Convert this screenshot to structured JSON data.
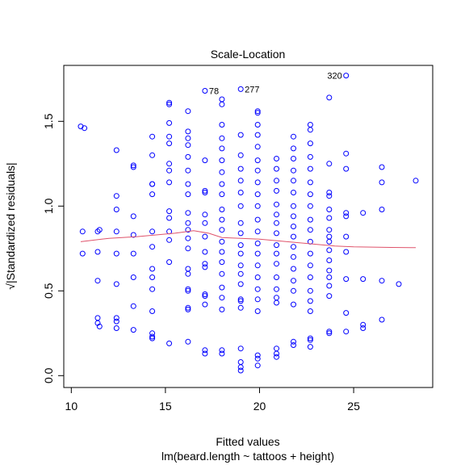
{
  "chart_data": {
    "type": "scatter",
    "title": "Scale-Location",
    "xlabel": "Fitted values",
    "subtitle": "lm(beard.length ~ tattoos + height)",
    "ylabel": "√|Standardized residuals|",
    "xlim": [
      9.6,
      29.2
    ],
    "ylim": [
      -0.07,
      1.83
    ],
    "x_ticks": [
      10,
      15,
      20,
      25
    ],
    "y_ticks": [
      0.0,
      0.5,
      1.0,
      1.5
    ],
    "x_tick_labels": [
      "10",
      "15",
      "20",
      "25"
    ],
    "y_tick_labels": [
      "0.0",
      "0.5",
      "1.0",
      "1.5"
    ],
    "grid": false,
    "point_color": "#0000FF",
    "smooth_color": "#DF536B",
    "points": [
      [
        10.5,
        1.47
      ],
      [
        10.7,
        1.46
      ],
      [
        10.6,
        0.85
      ],
      [
        10.6,
        0.72
      ],
      [
        11.4,
        0.85
      ],
      [
        11.5,
        0.86
      ],
      [
        11.4,
        0.73
      ],
      [
        11.4,
        0.56
      ],
      [
        11.4,
        0.34
      ],
      [
        11.4,
        0.31
      ],
      [
        11.5,
        0.29
      ],
      [
        12.4,
        1.33
      ],
      [
        12.4,
        1.06
      ],
      [
        12.4,
        0.98
      ],
      [
        12.4,
        0.85
      ],
      [
        12.4,
        0.72
      ],
      [
        12.4,
        0.54
      ],
      [
        12.4,
        0.34
      ],
      [
        12.4,
        0.32
      ],
      [
        12.4,
        0.28
      ],
      [
        13.3,
        1.24
      ],
      [
        13.3,
        1.23
      ],
      [
        13.3,
        0.94
      ],
      [
        13.3,
        0.83
      ],
      [
        13.3,
        0.72
      ],
      [
        13.3,
        0.58
      ],
      [
        13.3,
        0.41
      ],
      [
        13.3,
        0.27
      ],
      [
        14.3,
        1.41
      ],
      [
        14.3,
        1.3
      ],
      [
        14.3,
        1.13
      ],
      [
        14.3,
        1.07
      ],
      [
        14.3,
        1.13
      ],
      [
        14.3,
        0.85
      ],
      [
        14.3,
        0.76
      ],
      [
        14.3,
        0.63
      ],
      [
        14.3,
        0.58
      ],
      [
        14.3,
        0.51
      ],
      [
        14.3,
        0.38
      ],
      [
        14.3,
        0.25
      ],
      [
        14.3,
        0.22
      ],
      [
        14.3,
        0.23
      ],
      [
        15.2,
        1.61
      ],
      [
        15.2,
        1.6
      ],
      [
        15.2,
        1.49
      ],
      [
        15.2,
        1.41
      ],
      [
        15.2,
        1.37
      ],
      [
        15.2,
        1.25
      ],
      [
        15.2,
        1.21
      ],
      [
        15.2,
        1.14
      ],
      [
        15.2,
        0.97
      ],
      [
        15.2,
        0.93
      ],
      [
        15.2,
        0.85
      ],
      [
        15.2,
        0.8
      ],
      [
        15.2,
        0.67
      ],
      [
        15.2,
        0.19
      ],
      [
        16.2,
        1.56
      ],
      [
        16.2,
        1.44
      ],
      [
        16.2,
        1.4
      ],
      [
        16.2,
        1.36
      ],
      [
        16.2,
        1.29
      ],
      [
        16.2,
        1.21
      ],
      [
        16.2,
        1.13
      ],
      [
        16.2,
        1.07
      ],
      [
        16.2,
        0.96
      ],
      [
        16.2,
        0.9
      ],
      [
        16.2,
        0.86
      ],
      [
        16.2,
        0.81
      ],
      [
        16.2,
        0.75
      ],
      [
        16.2,
        0.63
      ],
      [
        16.2,
        0.6
      ],
      [
        16.2,
        0.51
      ],
      [
        16.2,
        0.5
      ],
      [
        16.2,
        0.4
      ],
      [
        16.2,
        0.39
      ],
      [
        16.2,
        0.2
      ],
      [
        17.1,
        1.27
      ],
      [
        17.1,
        1.09
      ],
      [
        17.1,
        1.08
      ],
      [
        17.1,
        0.95
      ],
      [
        17.1,
        0.9
      ],
      [
        17.1,
        0.82
      ],
      [
        17.1,
        0.73
      ],
      [
        17.1,
        0.66
      ],
      [
        17.1,
        0.64
      ],
      [
        17.1,
        0.48
      ],
      [
        17.1,
        0.47
      ],
      [
        17.1,
        0.42
      ],
      [
        17.1,
        0.15
      ],
      [
        17.1,
        0.13
      ],
      [
        17.1,
        1.68
      ],
      [
        18.0,
        1.63
      ],
      [
        18.0,
        1.6
      ],
      [
        18.0,
        1.48
      ],
      [
        18.0,
        1.4
      ],
      [
        18.0,
        1.34
      ],
      [
        18.0,
        1.27
      ],
      [
        18.0,
        1.2
      ],
      [
        18.0,
        1.13
      ],
      [
        18.0,
        1.07
      ],
      [
        18.0,
        0.98
      ],
      [
        18.0,
        0.92
      ],
      [
        18.0,
        0.86
      ],
      [
        18.0,
        0.79
      ],
      [
        18.0,
        0.73
      ],
      [
        18.0,
        0.67
      ],
      [
        18.0,
        0.6
      ],
      [
        18.0,
        0.52
      ],
      [
        18.0,
        0.46
      ],
      [
        18.0,
        0.39
      ],
      [
        18.0,
        0.15
      ],
      [
        18.0,
        0.13
      ],
      [
        19.0,
        1.69
      ],
      [
        19.0,
        1.42
      ],
      [
        19.0,
        1.3
      ],
      [
        19.0,
        1.22
      ],
      [
        19.0,
        1.15
      ],
      [
        19.0,
        1.08
      ],
      [
        19.0,
        1.0
      ],
      [
        19.0,
        0.9
      ],
      [
        19.0,
        0.84
      ],
      [
        19.0,
        0.77
      ],
      [
        19.0,
        0.72
      ],
      [
        19.0,
        0.65
      ],
      [
        19.0,
        0.6
      ],
      [
        19.0,
        0.54
      ],
      [
        19.0,
        0.45
      ],
      [
        19.0,
        0.44
      ],
      [
        19.0,
        0.4
      ],
      [
        19.0,
        0.16
      ],
      [
        19.0,
        0.08
      ],
      [
        19.0,
        0.05
      ],
      [
        19.0,
        0.03
      ],
      [
        19.9,
        1.56
      ],
      [
        19.9,
        1.55
      ],
      [
        19.9,
        1.48
      ],
      [
        19.9,
        1.42
      ],
      [
        19.9,
        1.35
      ],
      [
        19.9,
        1.27
      ],
      [
        19.9,
        1.21
      ],
      [
        19.9,
        1.14
      ],
      [
        19.9,
        1.07
      ],
      [
        19.9,
        1.0
      ],
      [
        19.9,
        0.92
      ],
      [
        19.9,
        0.85
      ],
      [
        19.9,
        0.78
      ],
      [
        19.9,
        0.72
      ],
      [
        19.9,
        0.65
      ],
      [
        19.9,
        0.58
      ],
      [
        19.9,
        0.51
      ],
      [
        19.9,
        0.45
      ],
      [
        19.9,
        0.38
      ],
      [
        19.9,
        0.12
      ],
      [
        19.9,
        0.1
      ],
      [
        19.9,
        0.06
      ],
      [
        20.9,
        1.28
      ],
      [
        20.9,
        1.22
      ],
      [
        20.9,
        1.15
      ],
      [
        20.9,
        1.09
      ],
      [
        20.9,
        1.01
      ],
      [
        20.9,
        0.95
      ],
      [
        20.9,
        0.9
      ],
      [
        20.9,
        0.84
      ],
      [
        20.9,
        0.77
      ],
      [
        20.9,
        0.72
      ],
      [
        20.9,
        0.66
      ],
      [
        20.9,
        0.58
      ],
      [
        20.9,
        0.51
      ],
      [
        20.9,
        0.46
      ],
      [
        20.9,
        0.43
      ],
      [
        20.9,
        0.16
      ],
      [
        20.9,
        0.13
      ],
      [
        20.9,
        0.11
      ],
      [
        21.8,
        1.41
      ],
      [
        21.8,
        1.34
      ],
      [
        21.8,
        1.28
      ],
      [
        21.8,
        1.21
      ],
      [
        21.8,
        1.15
      ],
      [
        21.8,
        1.08
      ],
      [
        21.8,
        1.0
      ],
      [
        21.8,
        0.94
      ],
      [
        21.8,
        0.88
      ],
      [
        21.8,
        0.82
      ],
      [
        21.8,
        0.76
      ],
      [
        21.8,
        0.7
      ],
      [
        21.8,
        0.63
      ],
      [
        21.8,
        0.56
      ],
      [
        21.8,
        0.5
      ],
      [
        21.8,
        0.42
      ],
      [
        21.8,
        0.2
      ],
      [
        21.8,
        0.18
      ],
      [
        22.7,
        1.48
      ],
      [
        22.7,
        1.45
      ],
      [
        22.7,
        1.37
      ],
      [
        22.7,
        1.29
      ],
      [
        22.7,
        1.22
      ],
      [
        22.7,
        1.14
      ],
      [
        22.7,
        1.07
      ],
      [
        22.7,
        1.0
      ],
      [
        22.7,
        0.92
      ],
      [
        22.7,
        0.86
      ],
      [
        22.7,
        0.79
      ],
      [
        22.7,
        0.72
      ],
      [
        22.7,
        0.65
      ],
      [
        22.7,
        0.58
      ],
      [
        22.7,
        0.5
      ],
      [
        22.7,
        0.44
      ],
      [
        22.7,
        0.38
      ],
      [
        22.7,
        0.22
      ],
      [
        22.7,
        0.21
      ],
      [
        22.7,
        0.17
      ],
      [
        23.7,
        1.64
      ],
      [
        23.7,
        1.25
      ],
      [
        23.7,
        1.08
      ],
      [
        23.7,
        1.06
      ],
      [
        23.7,
        0.98
      ],
      [
        23.7,
        0.93
      ],
      [
        23.7,
        0.86
      ],
      [
        23.7,
        0.82
      ],
      [
        23.7,
        0.79
      ],
      [
        23.7,
        0.74
      ],
      [
        23.7,
        0.68
      ],
      [
        23.7,
        0.62
      ],
      [
        23.7,
        0.58
      ],
      [
        23.7,
        0.53
      ],
      [
        23.7,
        0.47
      ],
      [
        23.7,
        0.26
      ],
      [
        23.7,
        0.25
      ],
      [
        24.6,
        1.77
      ],
      [
        24.6,
        1.31
      ],
      [
        24.6,
        1.22
      ],
      [
        24.6,
        0.96
      ],
      [
        24.6,
        0.94
      ],
      [
        24.6,
        0.82
      ],
      [
        24.6,
        0.73
      ],
      [
        24.6,
        0.57
      ],
      [
        24.6,
        0.37
      ],
      [
        24.6,
        0.26
      ],
      [
        25.5,
        0.96
      ],
      [
        25.5,
        0.57
      ],
      [
        25.5,
        0.3
      ],
      [
        25.5,
        0.28
      ],
      [
        26.5,
        1.23
      ],
      [
        26.5,
        1.14
      ],
      [
        26.5,
        0.98
      ],
      [
        26.5,
        0.56
      ],
      [
        26.5,
        0.33
      ],
      [
        27.4,
        0.54
      ],
      [
        28.3,
        1.15
      ]
    ],
    "smooth_line": [
      [
        10.5,
        0.79
      ],
      [
        12.0,
        0.81
      ],
      [
        13.5,
        0.82
      ],
      [
        14.5,
        0.83
      ],
      [
        15.5,
        0.84
      ],
      [
        16.5,
        0.855
      ],
      [
        17.3,
        0.84
      ],
      [
        18.0,
        0.815
      ],
      [
        19.0,
        0.81
      ],
      [
        20.0,
        0.805
      ],
      [
        21.0,
        0.795
      ],
      [
        22.0,
        0.785
      ],
      [
        23.0,
        0.775
      ],
      [
        24.0,
        0.765
      ],
      [
        25.0,
        0.76
      ],
      [
        26.0,
        0.758
      ],
      [
        27.0,
        0.756
      ],
      [
        28.3,
        0.755
      ]
    ],
    "annotations": [
      {
        "label": "78",
        "x": 17.1,
        "y": 1.68,
        "side": "right"
      },
      {
        "label": "277",
        "x": 19.0,
        "y": 1.69,
        "side": "right"
      },
      {
        "label": "320",
        "x": 24.6,
        "y": 1.77,
        "side": "left"
      }
    ]
  }
}
